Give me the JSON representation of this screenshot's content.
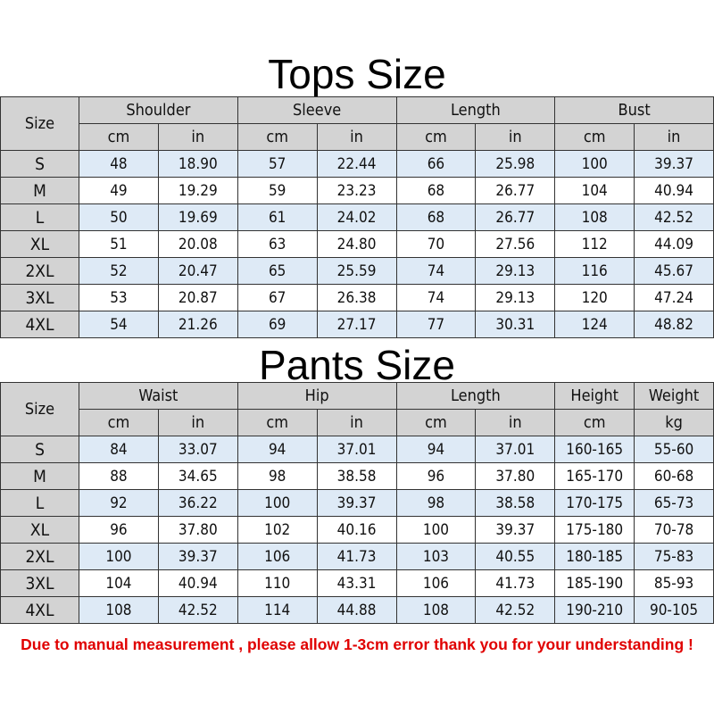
{
  "tops": {
    "title": "Tops Size",
    "size_label": "Size",
    "groups": [
      "Shoulder",
      "Sleeve",
      "Length",
      "Bust"
    ],
    "units": [
      "cm",
      "in",
      "cm",
      "in",
      "cm",
      "in",
      "cm",
      "in"
    ],
    "rows": [
      [
        "S",
        "48",
        "18.90",
        "57",
        "22.44",
        "66",
        "25.98",
        "100",
        "39.37"
      ],
      [
        "M",
        "49",
        "19.29",
        "59",
        "23.23",
        "68",
        "26.77",
        "104",
        "40.94"
      ],
      [
        "L",
        "50",
        "19.69",
        "61",
        "24.02",
        "68",
        "26.77",
        "108",
        "42.52"
      ],
      [
        "XL",
        "51",
        "20.08",
        "63",
        "24.80",
        "70",
        "27.56",
        "112",
        "44.09"
      ],
      [
        "2XL",
        "52",
        "20.47",
        "65",
        "25.59",
        "74",
        "29.13",
        "116",
        "45.67"
      ],
      [
        "3XL",
        "53",
        "20.87",
        "67",
        "26.38",
        "74",
        "29.13",
        "120",
        "47.24"
      ],
      [
        "4XL",
        "54",
        "21.26",
        "69",
        "27.17",
        "77",
        "30.31",
        "124",
        "48.82"
      ]
    ]
  },
  "pants": {
    "title": "Pants Size",
    "size_label": "Size",
    "groups": [
      "Waist",
      "Hip",
      "Length",
      "Height",
      "Weight"
    ],
    "units": [
      "cm",
      "in",
      "cm",
      "in",
      "cm",
      "in",
      "cm",
      "kg"
    ],
    "rows": [
      [
        "S",
        "84",
        "33.07",
        "94",
        "37.01",
        "94",
        "37.01",
        "160-165",
        "55-60"
      ],
      [
        "M",
        "88",
        "34.65",
        "98",
        "38.58",
        "96",
        "37.80",
        "165-170",
        "60-68"
      ],
      [
        "L",
        "92",
        "36.22",
        "100",
        "39.37",
        "98",
        "38.58",
        "170-175",
        "65-73"
      ],
      [
        "XL",
        "96",
        "37.80",
        "102",
        "40.16",
        "100",
        "39.37",
        "175-180",
        "70-78"
      ],
      [
        "2XL",
        "100",
        "39.37",
        "106",
        "41.73",
        "103",
        "40.55",
        "180-185",
        "75-83"
      ],
      [
        "3XL",
        "104",
        "40.94",
        "110",
        "43.31",
        "106",
        "41.73",
        "185-190",
        "85-93"
      ],
      [
        "4XL",
        "108",
        "42.52",
        "114",
        "44.88",
        "108",
        "42.52",
        "190-210",
        "90-105"
      ]
    ]
  },
  "note": "Due to manual measurement , please allow 1-3cm error thank you for your understanding !",
  "colors": {
    "header": "#d3d3d3",
    "row_alt": "#deeaf6",
    "note": "#e00000"
  }
}
